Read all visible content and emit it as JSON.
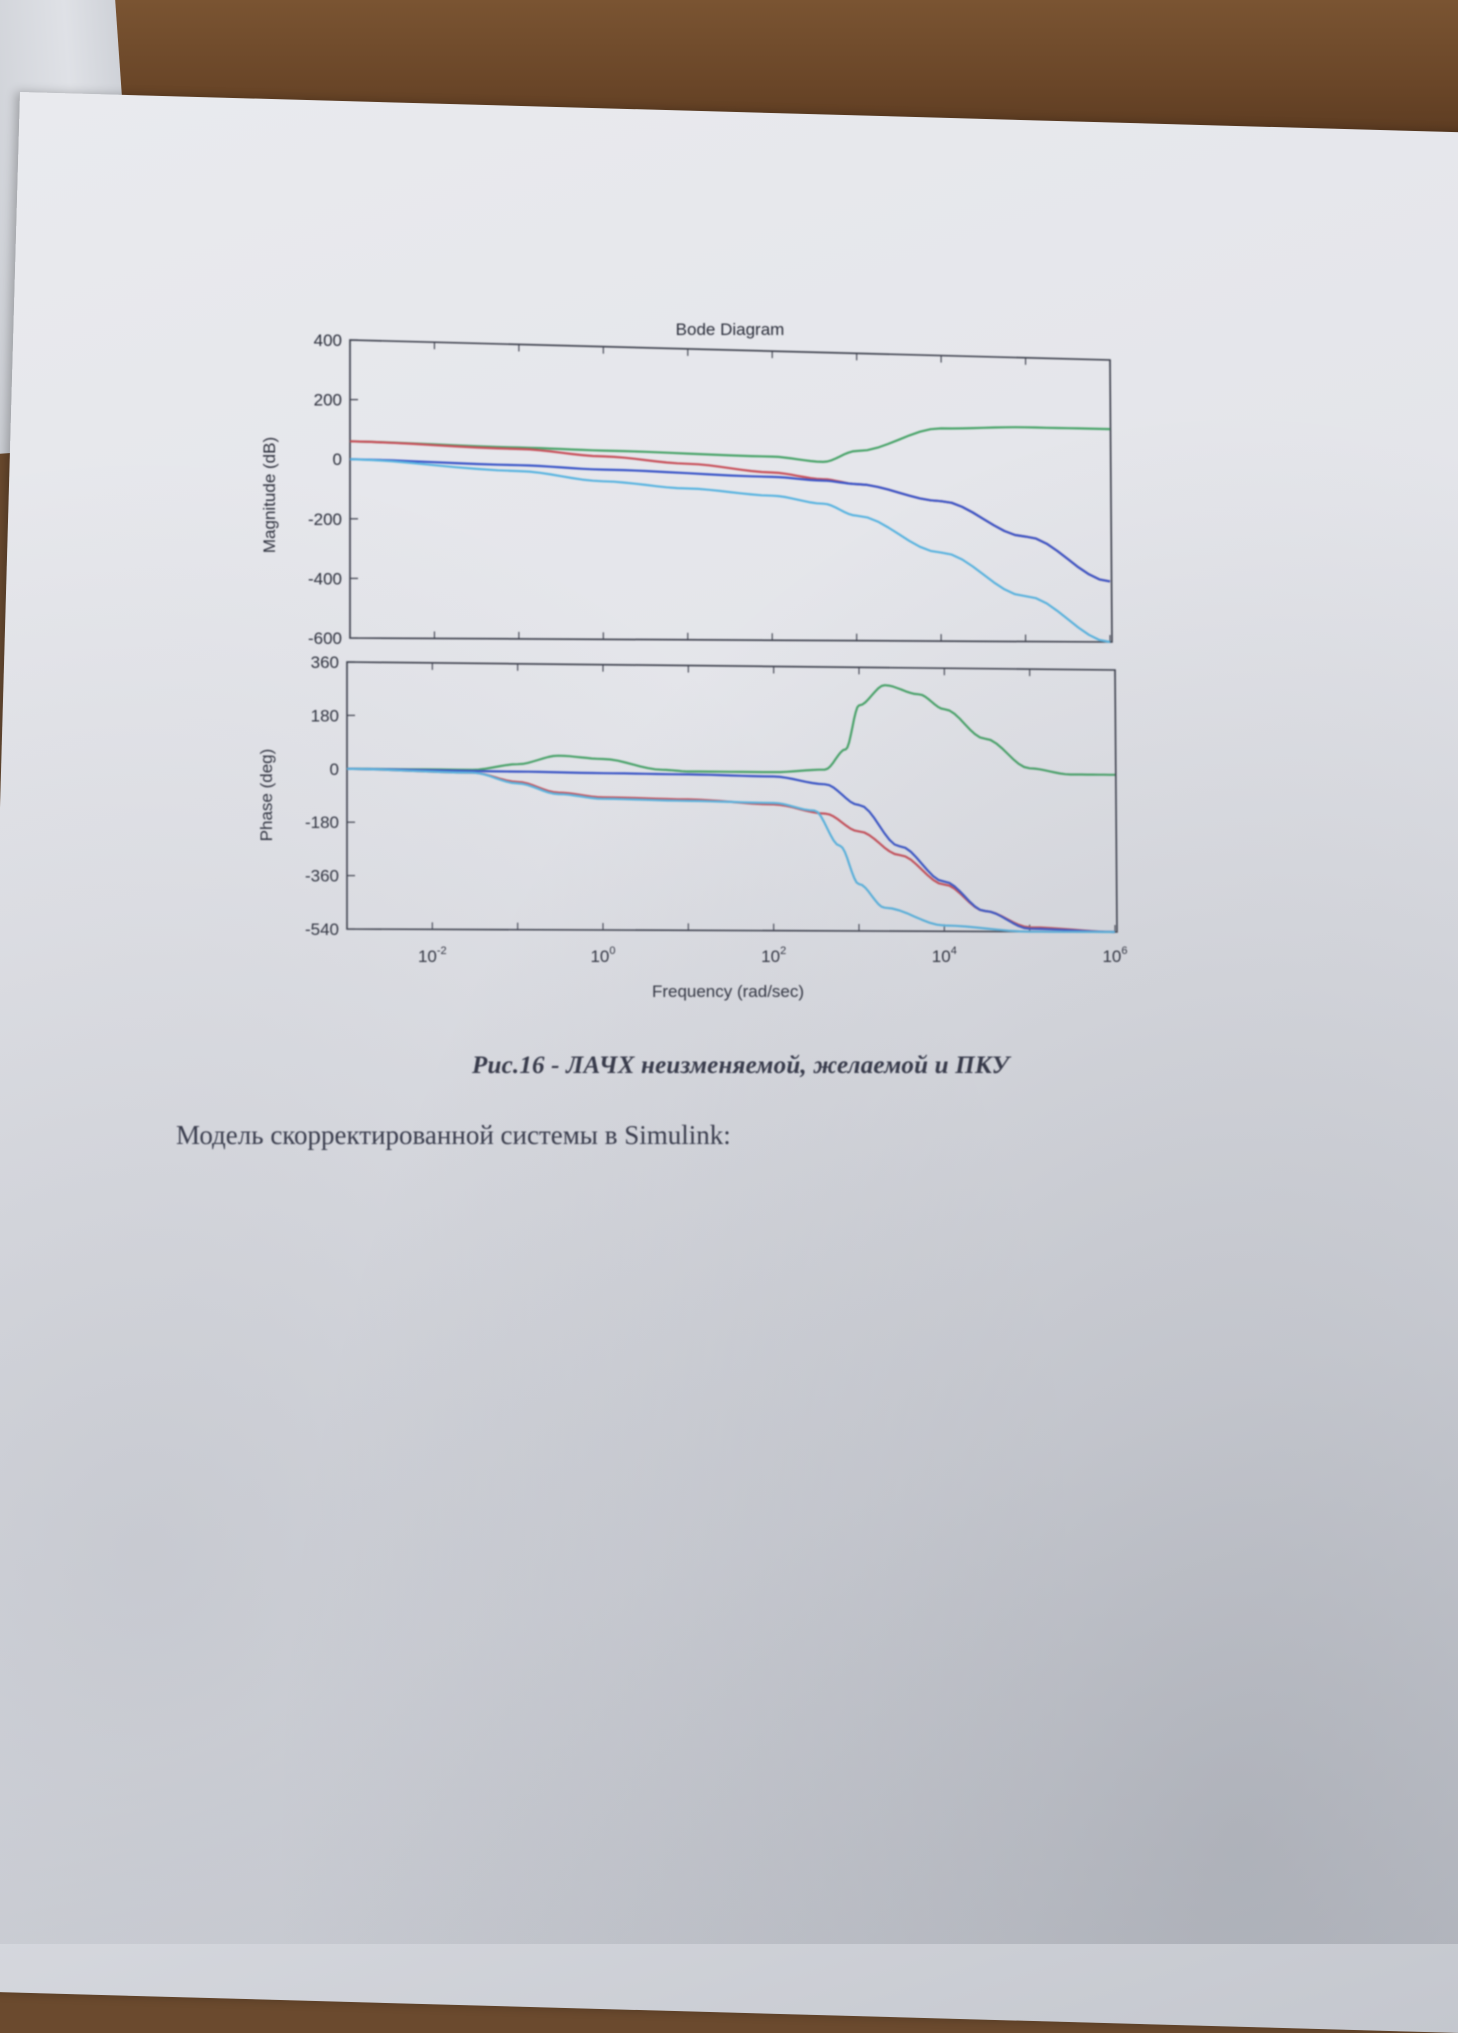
{
  "chart_data": {
    "type": "line",
    "title": "Bode Diagram",
    "xlabel": "Frequency  (rad/sec)",
    "xscale": "log",
    "xlim": [
      0.001,
      1000000
    ],
    "x_tick_labels": [
      "10^-2",
      "10^0",
      "10^2",
      "10^4",
      "10^6"
    ],
    "x_tick_values": [
      0.01,
      1,
      100,
      10000,
      1000000
    ],
    "grid": false,
    "colors": {
      "green": "#4aa46a",
      "red": "#c8505a",
      "blue": "#3a55c8",
      "cyan": "#5ab4e0"
    },
    "magnitude": {
      "ylabel": "Magnitude (dB)",
      "ylim": [
        -600,
        400
      ],
      "yticks": [
        400,
        200,
        0,
        -200,
        -400,
        -600
      ],
      "series": [
        {
          "color_key": "green",
          "points": [
            [
              0.001,
              60
            ],
            [
              0.1,
              50
            ],
            [
              1,
              45
            ],
            [
              100,
              35
            ],
            [
              400,
              20
            ],
            [
              1000,
              60
            ],
            [
              10000,
              145
            ],
            [
              100000,
              155
            ],
            [
              1000000,
              155
            ]
          ]
        },
        {
          "color_key": "red",
          "points": [
            [
              0.001,
              60
            ],
            [
              0.1,
              45
            ],
            [
              1,
              25
            ],
            [
              10,
              5
            ],
            [
              100,
              -20
            ],
            [
              400,
              -40
            ],
            [
              1000,
              -55
            ],
            [
              10000,
              -110
            ],
            [
              100000,
              -230
            ],
            [
              1000000,
              -385
            ]
          ]
        },
        {
          "color_key": "blue",
          "points": [
            [
              0.001,
              0
            ],
            [
              0.1,
              -10
            ],
            [
              1,
              -20
            ],
            [
              100,
              -35
            ],
            [
              400,
              -45
            ],
            [
              1000,
              -55
            ],
            [
              10000,
              -110
            ],
            [
              100000,
              -230
            ],
            [
              1000000,
              -385
            ]
          ]
        },
        {
          "color_key": "cyan",
          "points": [
            [
              0.001,
              0
            ],
            [
              0.1,
              -30
            ],
            [
              1,
              -60
            ],
            [
              10,
              -80
            ],
            [
              100,
              -100
            ],
            [
              400,
              -125
            ],
            [
              1000,
              -165
            ],
            [
              10000,
              -290
            ],
            [
              100000,
              -440
            ],
            [
              1000000,
              -600
            ]
          ]
        }
      ]
    },
    "phase": {
      "ylabel": "Phase (deg)",
      "ylim": [
        -540,
        360
      ],
      "yticks": [
        360,
        180,
        0,
        -180,
        -360,
        -540
      ],
      "series": [
        {
          "color_key": "green",
          "points": [
            [
              0.001,
              0
            ],
            [
              0.03,
              0
            ],
            [
              0.1,
              20
            ],
            [
              0.3,
              50
            ],
            [
              1,
              40
            ],
            [
              5,
              5
            ],
            [
              10,
              0
            ],
            [
              100,
              0
            ],
            [
              400,
              10
            ],
            [
              700,
              80
            ],
            [
              1000,
              230
            ],
            [
              2000,
              300
            ],
            [
              5000,
              270
            ],
            [
              10000,
              220
            ],
            [
              30000,
              120
            ],
            [
              100000,
              20
            ],
            [
              300000,
              0
            ],
            [
              1000000,
              0
            ]
          ]
        },
        {
          "color_key": "red",
          "points": [
            [
              0.001,
              0
            ],
            [
              0.03,
              -10
            ],
            [
              0.1,
              -40
            ],
            [
              0.3,
              -75
            ],
            [
              1,
              -90
            ],
            [
              10,
              -95
            ],
            [
              100,
              -110
            ],
            [
              400,
              -140
            ],
            [
              1000,
              -200
            ],
            [
              3000,
              -280
            ],
            [
              10000,
              -380
            ],
            [
              30000,
              -470
            ],
            [
              100000,
              -525
            ],
            [
              1000000,
              -540
            ]
          ]
        },
        {
          "color_key": "blue",
          "points": [
            [
              0.001,
              0
            ],
            [
              0.1,
              -5
            ],
            [
              1,
              -8
            ],
            [
              10,
              -10
            ],
            [
              100,
              -15
            ],
            [
              400,
              -40
            ],
            [
              1000,
              -110
            ],
            [
              3000,
              -250
            ],
            [
              10000,
              -370
            ],
            [
              30000,
              -470
            ],
            [
              100000,
              -530
            ],
            [
              1000000,
              -540
            ]
          ]
        },
        {
          "color_key": "cyan",
          "points": [
            [
              0.001,
              0
            ],
            [
              0.03,
              -10
            ],
            [
              0.1,
              -45
            ],
            [
              0.3,
              -80
            ],
            [
              1,
              -95
            ],
            [
              10,
              -100
            ],
            [
              100,
              -105
            ],
            [
              300,
              -130
            ],
            [
              600,
              -250
            ],
            [
              1000,
              -380
            ],
            [
              2000,
              -460
            ],
            [
              10000,
              -520
            ],
            [
              100000,
              -540
            ],
            [
              1000000,
              -540
            ]
          ]
        }
      ]
    }
  },
  "caption": "Рис.16 - ЛАЧХ неизменяемой, желаемой и ПКУ",
  "body_text": "Модель скорректированной системы в Simulink:"
}
